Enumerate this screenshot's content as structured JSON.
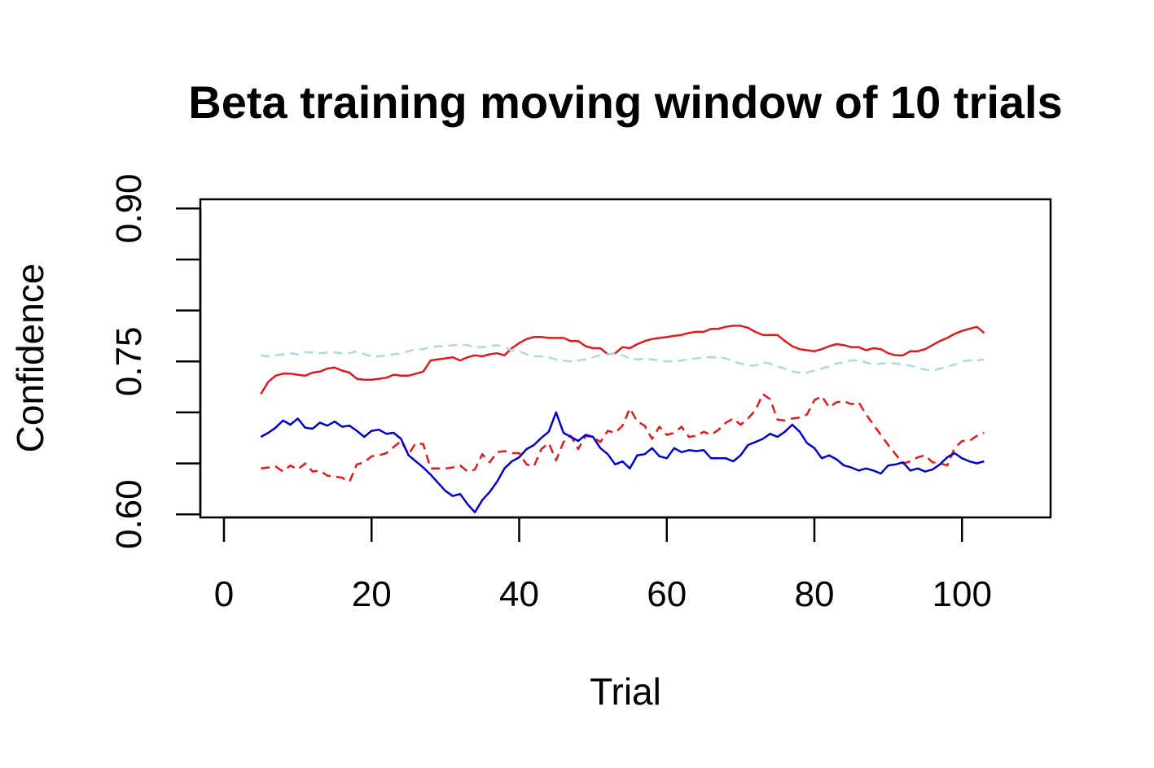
{
  "chart_data": {
    "type": "line",
    "title": "Beta training moving window of 10 trials",
    "xlabel": "Trial",
    "ylabel": "Confidence",
    "xlim": [
      -3.2,
      112
    ],
    "ylim": [
      0.597,
      0.909
    ],
    "xticks": [
      0,
      20,
      40,
      60,
      80,
      100
    ],
    "xtick_labels": [
      "0",
      "20",
      "40",
      "60",
      "80",
      "100"
    ],
    "yticks": [
      0.6,
      0.65,
      0.7,
      0.75,
      0.8,
      0.85,
      0.9
    ],
    "ytick_labels": [
      "0.60",
      "",
      "",
      "0.75",
      "",
      "",
      "0.90"
    ],
    "grid": false,
    "legend": "none",
    "series": [
      {
        "color": "#e31a1c",
        "dash": "solid",
        "x": [
          5,
          6,
          7,
          8,
          9,
          10,
          11,
          12,
          13,
          14,
          15,
          16,
          17,
          18,
          19,
          20,
          21,
          22,
          23,
          24,
          25,
          26,
          27,
          28,
          29,
          30,
          31,
          32,
          33,
          34,
          35,
          36,
          37,
          38,
          39,
          40,
          41,
          42,
          43,
          44,
          45,
          46,
          47,
          48,
          49,
          50,
          51,
          52,
          53,
          54,
          55,
          56,
          57,
          58,
          59,
          60,
          61,
          62,
          63,
          64,
          65,
          66,
          67,
          68,
          69,
          70,
          71,
          72,
          73,
          74,
          75,
          76,
          77,
          78,
          79,
          80,
          81,
          82,
          83,
          84,
          85,
          86,
          87,
          88,
          89,
          90,
          91,
          92,
          93,
          94,
          95,
          96,
          97,
          98,
          99,
          100,
          101,
          102,
          103
        ],
        "y": [
          0.718,
          0.73,
          0.736,
          0.738,
          0.738,
          0.737,
          0.736,
          0.739,
          0.74,
          0.743,
          0.744,
          0.741,
          0.739,
          0.733,
          0.732,
          0.732,
          0.733,
          0.734,
          0.737,
          0.736,
          0.736,
          0.738,
          0.74,
          0.751,
          0.752,
          0.753,
          0.754,
          0.751,
          0.754,
          0.756,
          0.755,
          0.757,
          0.758,
          0.756,
          0.763,
          0.768,
          0.772,
          0.774,
          0.774,
          0.773,
          0.773,
          0.773,
          0.77,
          0.77,
          0.765,
          0.763,
          0.763,
          0.757,
          0.758,
          0.764,
          0.763,
          0.767,
          0.77,
          0.772,
          0.773,
          0.774,
          0.775,
          0.776,
          0.778,
          0.779,
          0.779,
          0.782,
          0.782,
          0.784,
          0.785,
          0.785,
          0.783,
          0.779,
          0.776,
          0.776,
          0.776,
          0.77,
          0.765,
          0.762,
          0.761,
          0.76,
          0.762,
          0.765,
          0.767,
          0.766,
          0.764,
          0.764,
          0.761,
          0.763,
          0.762,
          0.758,
          0.756,
          0.756,
          0.76,
          0.76,
          0.762,
          0.766,
          0.77,
          0.773,
          0.777,
          0.78,
          0.782,
          0.784,
          0.778
        ]
      },
      {
        "color": "#add8e6",
        "dash": "dashed",
        "x": [
          5,
          6,
          7,
          8,
          9,
          10,
          11,
          12,
          13,
          14,
          15,
          16,
          17,
          18,
          19,
          20,
          21,
          22,
          23,
          24,
          25,
          26,
          27,
          28,
          29,
          30,
          31,
          32,
          33,
          34,
          35,
          36,
          37,
          38,
          39,
          40,
          41,
          42,
          43,
          44,
          45,
          46,
          47,
          48,
          49,
          50,
          51,
          52,
          53,
          54,
          55,
          56,
          57,
          58,
          59,
          60,
          61,
          62,
          63,
          64,
          65,
          66,
          67,
          68,
          69,
          70,
          71,
          72,
          73,
          74,
          75,
          76,
          77,
          78,
          79,
          80,
          81,
          82,
          83,
          84,
          85,
          86,
          87,
          88,
          89,
          90,
          91,
          92,
          93,
          94,
          95,
          96,
          97,
          98,
          99,
          100,
          101,
          102,
          103
        ],
        "y": [
          0.756,
          0.755,
          0.756,
          0.757,
          0.758,
          0.757,
          0.759,
          0.759,
          0.758,
          0.759,
          0.759,
          0.758,
          0.758,
          0.76,
          0.757,
          0.755,
          0.755,
          0.756,
          0.757,
          0.758,
          0.76,
          0.762,
          0.762,
          0.764,
          0.765,
          0.765,
          0.766,
          0.766,
          0.766,
          0.764,
          0.764,
          0.765,
          0.766,
          0.764,
          0.761,
          0.76,
          0.757,
          0.755,
          0.755,
          0.754,
          0.752,
          0.751,
          0.75,
          0.751,
          0.752,
          0.754,
          0.756,
          0.757,
          0.758,
          0.756,
          0.753,
          0.752,
          0.753,
          0.752,
          0.751,
          0.75,
          0.75,
          0.751,
          0.752,
          0.753,
          0.754,
          0.754,
          0.754,
          0.753,
          0.75,
          0.748,
          0.746,
          0.746,
          0.749,
          0.748,
          0.745,
          0.743,
          0.74,
          0.739,
          0.739,
          0.741,
          0.743,
          0.745,
          0.748,
          0.749,
          0.751,
          0.751,
          0.749,
          0.747,
          0.748,
          0.748,
          0.748,
          0.747,
          0.746,
          0.744,
          0.742,
          0.741,
          0.743,
          0.745,
          0.747,
          0.75,
          0.751,
          0.751,
          0.752
        ]
      },
      {
        "color": "#e31a1c",
        "dash": "dashed",
        "x": [
          5,
          6,
          7,
          8,
          9,
          10,
          11,
          12,
          13,
          14,
          15,
          16,
          17,
          18,
          19,
          20,
          21,
          22,
          23,
          24,
          25,
          26,
          27,
          28,
          29,
          30,
          31,
          32,
          33,
          34,
          35,
          36,
          37,
          38,
          39,
          40,
          41,
          42,
          43,
          44,
          45,
          46,
          47,
          48,
          49,
          50,
          51,
          52,
          53,
          54,
          55,
          56,
          57,
          58,
          59,
          60,
          61,
          62,
          63,
          64,
          65,
          66,
          67,
          68,
          69,
          70,
          71,
          72,
          73,
          74,
          75,
          76,
          77,
          78,
          79,
          80,
          81,
          82,
          83,
          84,
          85,
          86,
          87,
          88,
          89,
          90,
          91,
          92,
          93,
          94,
          95,
          96,
          97,
          98,
          99,
          100,
          101,
          102,
          103
        ],
        "y": [
          0.645,
          0.646,
          0.647,
          0.642,
          0.648,
          0.644,
          0.65,
          0.642,
          0.643,
          0.638,
          0.637,
          0.636,
          0.632,
          0.649,
          0.651,
          0.657,
          0.658,
          0.66,
          0.666,
          0.672,
          0.659,
          0.67,
          0.669,
          0.645,
          0.645,
          0.645,
          0.646,
          0.648,
          0.642,
          0.644,
          0.659,
          0.651,
          0.661,
          0.662,
          0.66,
          0.66,
          0.649,
          0.647,
          0.664,
          0.67,
          0.653,
          0.671,
          0.677,
          0.664,
          0.677,
          0.676,
          0.671,
          0.682,
          0.68,
          0.687,
          0.704,
          0.691,
          0.687,
          0.674,
          0.686,
          0.678,
          0.68,
          0.686,
          0.676,
          0.677,
          0.681,
          0.678,
          0.683,
          0.69,
          0.694,
          0.688,
          0.694,
          0.702,
          0.718,
          0.713,
          0.693,
          0.692,
          0.694,
          0.695,
          0.698,
          0.712,
          0.716,
          0.705,
          0.71,
          0.711,
          0.708,
          0.71,
          0.698,
          0.688,
          0.678,
          0.668,
          0.659,
          0.65,
          0.652,
          0.656,
          0.658,
          0.651,
          0.65,
          0.648,
          0.665,
          0.672,
          0.672,
          0.677,
          0.68
        ]
      },
      {
        "color": "#0000cd",
        "dash": "solid",
        "x": [
          5,
          6,
          7,
          8,
          9,
          10,
          11,
          12,
          13,
          14,
          15,
          16,
          17,
          18,
          19,
          20,
          21,
          22,
          23,
          24,
          25,
          26,
          27,
          28,
          29,
          30,
          31,
          32,
          33,
          34,
          35,
          36,
          37,
          38,
          39,
          40,
          41,
          42,
          43,
          44,
          45,
          46,
          47,
          48,
          49,
          50,
          51,
          52,
          53,
          54,
          55,
          56,
          57,
          58,
          59,
          60,
          61,
          62,
          63,
          64,
          65,
          66,
          67,
          68,
          69,
          70,
          71,
          72,
          73,
          74,
          75,
          76,
          77,
          78,
          79,
          80,
          81,
          82,
          83,
          84,
          85,
          86,
          87,
          88,
          89,
          90,
          91,
          92,
          93,
          94,
          95,
          96,
          97,
          98,
          99,
          100,
          101,
          102,
          103
        ],
        "y": [
          0.676,
          0.68,
          0.685,
          0.692,
          0.688,
          0.694,
          0.685,
          0.684,
          0.69,
          0.687,
          0.691,
          0.686,
          0.687,
          0.682,
          0.676,
          0.682,
          0.683,
          0.679,
          0.68,
          0.674,
          0.658,
          0.652,
          0.646,
          0.639,
          0.631,
          0.623,
          0.618,
          0.62,
          0.61,
          0.602,
          0.614,
          0.622,
          0.632,
          0.645,
          0.652,
          0.656,
          0.664,
          0.668,
          0.675,
          0.681,
          0.7,
          0.68,
          0.676,
          0.672,
          0.678,
          0.676,
          0.665,
          0.659,
          0.649,
          0.652,
          0.645,
          0.658,
          0.659,
          0.665,
          0.657,
          0.655,
          0.665,
          0.661,
          0.663,
          0.662,
          0.663,
          0.655,
          0.655,
          0.655,
          0.652,
          0.658,
          0.668,
          0.671,
          0.674,
          0.679,
          0.676,
          0.681,
          0.688,
          0.681,
          0.67,
          0.665,
          0.655,
          0.658,
          0.654,
          0.648,
          0.646,
          0.643,
          0.645,
          0.643,
          0.64,
          0.648,
          0.649,
          0.651,
          0.643,
          0.645,
          0.642,
          0.644,
          0.649,
          0.656,
          0.66,
          0.655,
          0.652,
          0.65,
          0.652
        ]
      }
    ]
  }
}
